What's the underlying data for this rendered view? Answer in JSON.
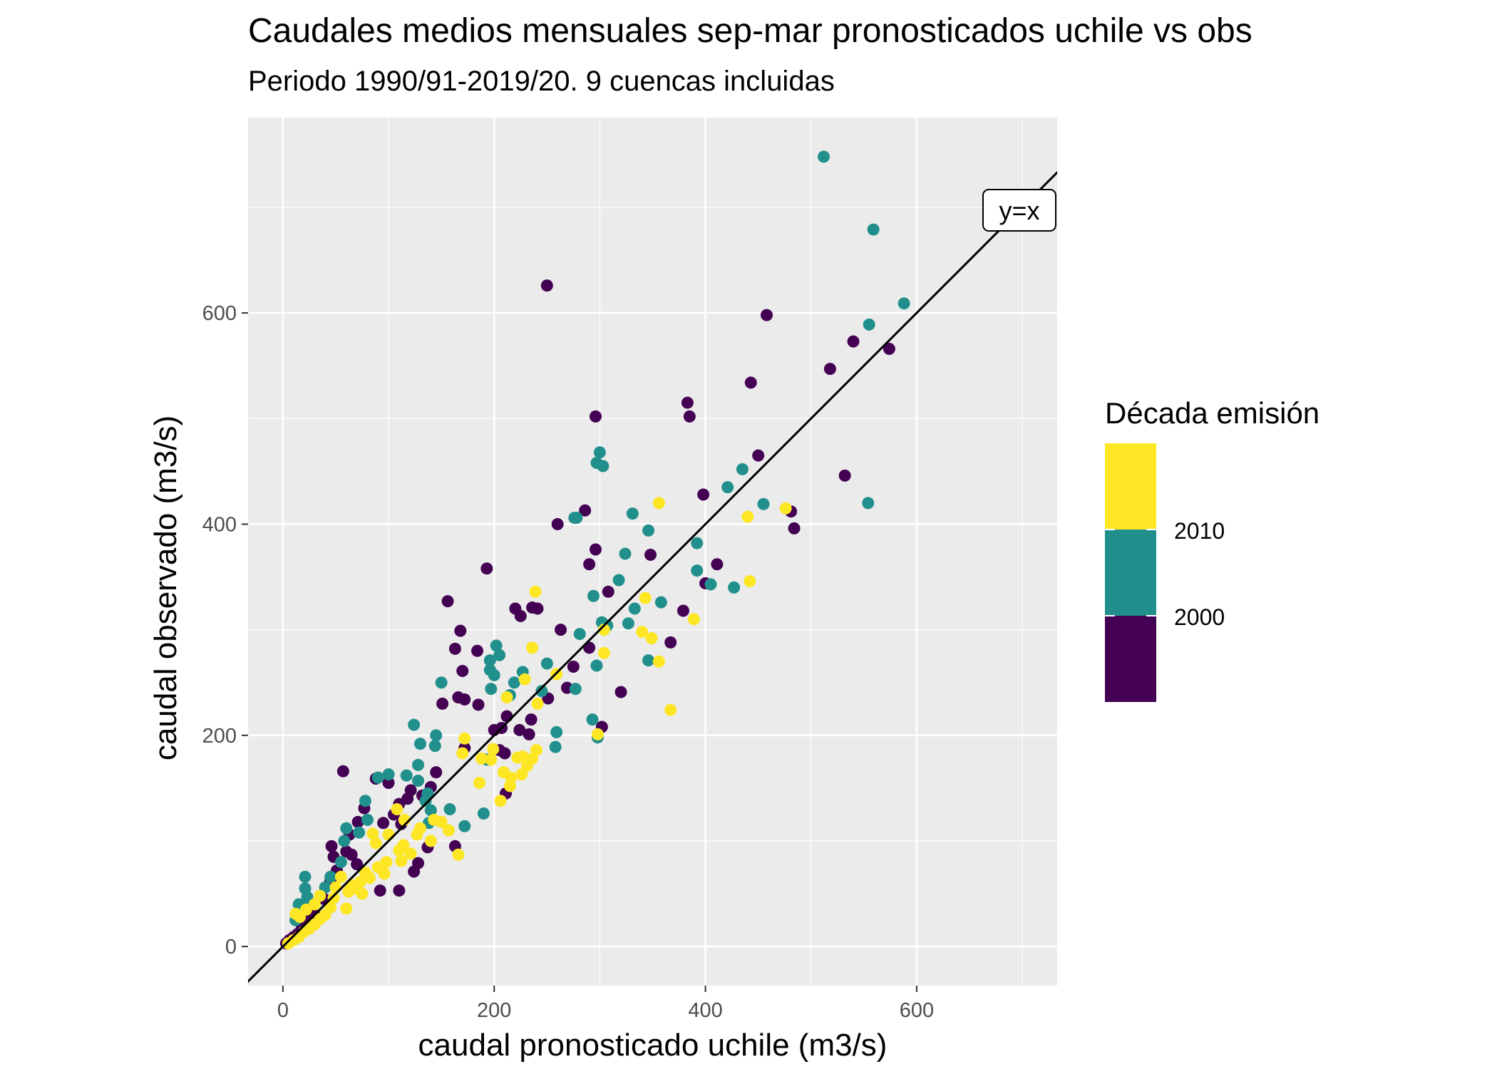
{
  "chart_data": {
    "type": "scatter",
    "title": "Caudales medios mensuales sep-mar pronosticados uchile vs obs",
    "subtitle": "Periodo 1990/91-2019/20. 9 cuencas incluidas",
    "xlabel": "caudal pronosticado uchile (m3/s)",
    "ylabel": "caudal observado (m3/s)",
    "xlim": [
      -33,
      733
    ],
    "ylim": [
      -37,
      785
    ],
    "x_ticks": [
      0,
      200,
      400,
      600
    ],
    "y_ticks": [
      0,
      200,
      400,
      600
    ],
    "grid": true,
    "legend": {
      "title": "Década emisión",
      "placement": "right",
      "entries": [
        {
          "label": "",
          "color": "#FDE725"
        },
        {
          "label": "2010",
          "color": "#21908C"
        },
        {
          "label": "2000",
          "color": "#440154"
        }
      ]
    },
    "reference_line": {
      "label": "y=x",
      "slope": 1,
      "intercept": 0
    },
    "series": [
      {
        "color": "#440154",
        "points": [
          [
            250,
            626
          ],
          [
            458,
            598
          ],
          [
            540,
            573
          ],
          [
            574,
            566
          ],
          [
            518,
            547
          ],
          [
            383,
            515
          ],
          [
            443,
            534
          ],
          [
            385,
            502
          ],
          [
            296,
            502
          ],
          [
            450,
            465
          ],
          [
            532,
            446
          ],
          [
            398,
            428
          ],
          [
            481,
            412
          ],
          [
            260,
            400
          ],
          [
            286,
            413
          ],
          [
            484,
            396
          ],
          [
            296,
            376
          ],
          [
            411,
            362
          ],
          [
            290,
            362
          ],
          [
            348,
            371
          ],
          [
            193,
            358
          ],
          [
            400,
            344
          ],
          [
            379,
            318
          ],
          [
            367,
            288
          ],
          [
            308,
            336
          ],
          [
            236,
            321
          ],
          [
            241,
            320
          ],
          [
            225,
            313
          ],
          [
            220,
            320
          ],
          [
            275,
            265
          ],
          [
            263,
            300
          ],
          [
            156,
            327
          ],
          [
            163,
            282
          ],
          [
            168,
            299
          ],
          [
            184,
            280
          ],
          [
            170,
            261
          ],
          [
            251,
            235
          ],
          [
            269,
            245
          ],
          [
            290,
            283
          ],
          [
            320,
            241
          ],
          [
            302,
            208
          ],
          [
            166,
            236
          ],
          [
            172,
            234
          ],
          [
            185,
            229
          ],
          [
            212,
            218
          ],
          [
            207,
            207
          ],
          [
            200,
            205
          ],
          [
            224,
            205
          ],
          [
            235,
            215
          ],
          [
            233,
            201
          ],
          [
            151,
            230
          ],
          [
            172,
            188
          ],
          [
            205,
            186
          ],
          [
            210,
            183
          ],
          [
            211,
            145
          ],
          [
            57,
            166
          ],
          [
            88,
            159
          ],
          [
            100,
            155
          ],
          [
            110,
            135
          ],
          [
            145,
            165
          ],
          [
            140,
            151
          ],
          [
            132,
            143
          ],
          [
            121,
            148
          ],
          [
            118,
            140
          ],
          [
            105,
            125
          ],
          [
            112,
            116
          ],
          [
            95,
            117
          ],
          [
            77,
            131
          ],
          [
            71,
            118
          ],
          [
            63,
            106
          ],
          [
            46,
            95
          ],
          [
            48,
            85
          ],
          [
            60,
            90
          ],
          [
            65,
            87
          ],
          [
            70,
            78
          ],
          [
            92,
            53
          ],
          [
            110,
            53
          ],
          [
            124,
            71
          ],
          [
            128,
            79
          ],
          [
            137,
            94
          ],
          [
            163,
            95
          ],
          [
            51,
            72
          ],
          [
            45,
            62
          ],
          [
            39,
            45
          ],
          [
            30,
            30
          ],
          [
            22,
            26
          ],
          [
            18,
            18
          ],
          [
            14,
            12
          ],
          [
            10,
            9
          ],
          [
            6,
            6
          ],
          [
            3,
            3
          ]
        ]
      },
      {
        "color": "#21908C",
        "points": [
          [
            512,
            748
          ],
          [
            559,
            679
          ],
          [
            588,
            609
          ],
          [
            555,
            589
          ],
          [
            554,
            420
          ],
          [
            455,
            419
          ],
          [
            435,
            452
          ],
          [
            421,
            435
          ],
          [
            427,
            340
          ],
          [
            405,
            343
          ],
          [
            392,
            356
          ],
          [
            392,
            382
          ],
          [
            300,
            468
          ],
          [
            297,
            458
          ],
          [
            303,
            455
          ],
          [
            331,
            410
          ],
          [
            346,
            394
          ],
          [
            324,
            372
          ],
          [
            333,
            320
          ],
          [
            318,
            347
          ],
          [
            302,
            307
          ],
          [
            307,
            304
          ],
          [
            327,
            306
          ],
          [
            358,
            326
          ],
          [
            346,
            271
          ],
          [
            297,
            266
          ],
          [
            294,
            332
          ],
          [
            281,
            296
          ],
          [
            276,
            406
          ],
          [
            278,
            406
          ],
          [
            277,
            244
          ],
          [
            293,
            215
          ],
          [
            298,
            198
          ],
          [
            258,
            189
          ],
          [
            259,
            203
          ],
          [
            245,
            242
          ],
          [
            250,
            268
          ],
          [
            227,
            260
          ],
          [
            219,
            250
          ],
          [
            215,
            238
          ],
          [
            205,
            276
          ],
          [
            202,
            285
          ],
          [
            200,
            257
          ],
          [
            196,
            271
          ],
          [
            196,
            262
          ],
          [
            197,
            244
          ],
          [
            193,
            177
          ],
          [
            190,
            126
          ],
          [
            172,
            114
          ],
          [
            158,
            130
          ],
          [
            150,
            250
          ],
          [
            145,
            200
          ],
          [
            144,
            190
          ],
          [
            130,
            192
          ],
          [
            128,
            157
          ],
          [
            128,
            172
          ],
          [
            124,
            210
          ],
          [
            137,
            145
          ],
          [
            135,
            138
          ],
          [
            140,
            129
          ],
          [
            138,
            117
          ],
          [
            117,
            162
          ],
          [
            100,
            163
          ],
          [
            90,
            160
          ],
          [
            78,
            138
          ],
          [
            80,
            120
          ],
          [
            72,
            108
          ],
          [
            60,
            112
          ],
          [
            58,
            100
          ],
          [
            55,
            80
          ],
          [
            45,
            66
          ],
          [
            40,
            56
          ],
          [
            21,
            66
          ],
          [
            21,
            55
          ],
          [
            23,
            47
          ],
          [
            20,
            38
          ],
          [
            15,
            40
          ],
          [
            12,
            25
          ]
        ]
      },
      {
        "color": "#FDE725",
        "points": [
          [
            356,
            420
          ],
          [
            476,
            415
          ],
          [
            440,
            407
          ],
          [
            442,
            346
          ],
          [
            389,
            310
          ],
          [
            367,
            224
          ],
          [
            356,
            270
          ],
          [
            349,
            292
          ],
          [
            343,
            330
          ],
          [
            340,
            298
          ],
          [
            304,
            278
          ],
          [
            304,
            300
          ],
          [
            298,
            201
          ],
          [
            239,
            336
          ],
          [
            236,
            283
          ],
          [
            229,
            253
          ],
          [
            212,
            236
          ],
          [
            259,
            258
          ],
          [
            241,
            230
          ],
          [
            240,
            186
          ],
          [
            236,
            178
          ],
          [
            231,
            171
          ],
          [
            227,
            180
          ],
          [
            222,
            179
          ],
          [
            226,
            163
          ],
          [
            216,
            160
          ],
          [
            215,
            152
          ],
          [
            209,
            165
          ],
          [
            206,
            138
          ],
          [
            199,
            187
          ],
          [
            197,
            177
          ],
          [
            188,
            178
          ],
          [
            186,
            155
          ],
          [
            172,
            197
          ],
          [
            170,
            183
          ],
          [
            166,
            87
          ],
          [
            157,
            110
          ],
          [
            150,
            118
          ],
          [
            143,
            120
          ],
          [
            140,
            100
          ],
          [
            130,
            112
          ],
          [
            127,
            106
          ],
          [
            121,
            88
          ],
          [
            114,
            96
          ],
          [
            112,
            81
          ],
          [
            110,
            91
          ],
          [
            98,
            80
          ],
          [
            96,
            69
          ],
          [
            90,
            75
          ],
          [
            82,
            65
          ],
          [
            78,
            70
          ],
          [
            73,
            61
          ],
          [
            68,
            55
          ],
          [
            62,
            52
          ],
          [
            55,
            66
          ],
          [
            50,
            56
          ],
          [
            48,
            46
          ],
          [
            45,
            37
          ],
          [
            40,
            30
          ],
          [
            35,
            26
          ],
          [
            30,
            21
          ],
          [
            25,
            17
          ],
          [
            20,
            14
          ],
          [
            15,
            9
          ],
          [
            10,
            6
          ],
          [
            5,
            3
          ],
          [
            30,
            40
          ],
          [
            22,
            35
          ],
          [
            16,
            28
          ],
          [
            12,
            31
          ],
          [
            60,
            36
          ],
          [
            75,
            50
          ],
          [
            88,
            98
          ],
          [
            65,
            58
          ],
          [
            85,
            107
          ],
          [
            115,
            120
          ],
          [
            108,
            130
          ],
          [
            100,
            106
          ],
          [
            35,
            48
          ]
        ]
      }
    ]
  }
}
